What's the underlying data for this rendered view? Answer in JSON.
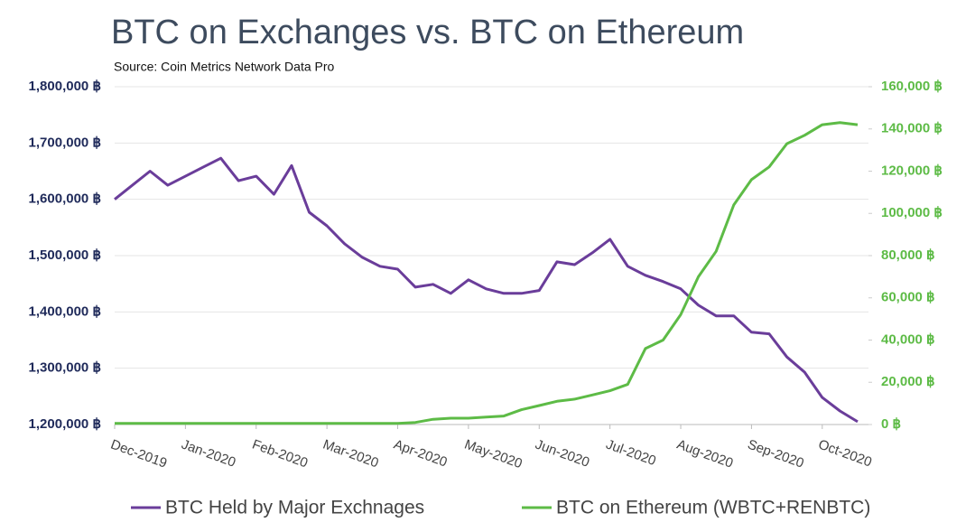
{
  "chart_data": {
    "type": "line",
    "title": "BTC on Exchanges vs. BTC on Ethereum",
    "subtitle": "Source: Coin Metrics Network Data Pro",
    "categories": [
      "Dec-2019",
      null,
      null,
      null,
      "Jan-2020",
      null,
      null,
      null,
      "Feb-2020",
      null,
      null,
      null,
      "Mar-2020",
      null,
      null,
      null,
      "Apr-2020",
      null,
      null,
      null,
      "May-2020",
      null,
      null,
      null,
      "Jun-2020",
      null,
      null,
      null,
      "Jul-2020",
      null,
      null,
      null,
      "Aug-2020",
      null,
      null,
      null,
      "Sep-2020",
      null,
      null,
      null,
      "Oct-2020",
      null,
      null
    ],
    "series": [
      {
        "name": "BTC Held by Major Exchnages",
        "color": "#6a3d9a",
        "axis": "y",
        "values": [
          1600000,
          1625000,
          1650000,
          1625000,
          1641000,
          1657000,
          1673000,
          1633000,
          1641000,
          1609000,
          1660000,
          1577000,
          1553000,
          1521000,
          1497000,
          1481000,
          1476000,
          1444000,
          1449000,
          1433000,
          1457000,
          1441000,
          1433000,
          1433000,
          1438000,
          1489000,
          1484000,
          1505000,
          1529000,
          1481000,
          1465000,
          1454000,
          1441000,
          1412000,
          1393000,
          1393000,
          1364000,
          1361000,
          1320000,
          1293000,
          1248000,
          1224000,
          1205000
        ]
      },
      {
        "name": "BTC on Ethereum (WBTC+RENBTC)",
        "color": "#5dbb46",
        "axis": "y2",
        "values": [
          500,
          500,
          500,
          500,
          500,
          500,
          500,
          500,
          500,
          500,
          500,
          500,
          500,
          500,
          500,
          500,
          500,
          1000,
          2500,
          3000,
          3000,
          3500,
          4000,
          7000,
          9000,
          11000,
          12000,
          14000,
          16000,
          19000,
          36000,
          40000,
          52000,
          70000,
          82000,
          104000,
          116000,
          122000,
          133000,
          137000,
          142000,
          143000,
          142000
        ]
      }
    ],
    "ylim": [
      1200000,
      1800000
    ],
    "yticks": [
      {
        "value": 1200000,
        "label": "1,200,000 ฿"
      },
      {
        "value": 1300000,
        "label": "1,300,000 ฿"
      },
      {
        "value": 1400000,
        "label": "1,400,000 ฿"
      },
      {
        "value": 1500000,
        "label": "1,500,000 ฿"
      },
      {
        "value": 1600000,
        "label": "1,600,000 ฿"
      },
      {
        "value": 1700000,
        "label": "1,700,000 ฿"
      },
      {
        "value": 1800000,
        "label": "1,800,000 ฿"
      }
    ],
    "y2lim": [
      0,
      160000
    ],
    "y2ticks": [
      {
        "value": 0,
        "label": "0 ฿"
      },
      {
        "value": 20000,
        "label": "20,000 ฿"
      },
      {
        "value": 40000,
        "label": "40,000 ฿"
      },
      {
        "value": 60000,
        "label": "60,000 ฿"
      },
      {
        "value": 80000,
        "label": "80,000 ฿"
      },
      {
        "value": 100000,
        "label": "100,000 ฿"
      },
      {
        "value": 120000,
        "label": "120,000 ฿"
      },
      {
        "value": 140000,
        "label": "140,000 ฿"
      },
      {
        "value": 160000,
        "label": "160,000 ฿"
      }
    ],
    "grid": true,
    "legend": "bottom"
  }
}
